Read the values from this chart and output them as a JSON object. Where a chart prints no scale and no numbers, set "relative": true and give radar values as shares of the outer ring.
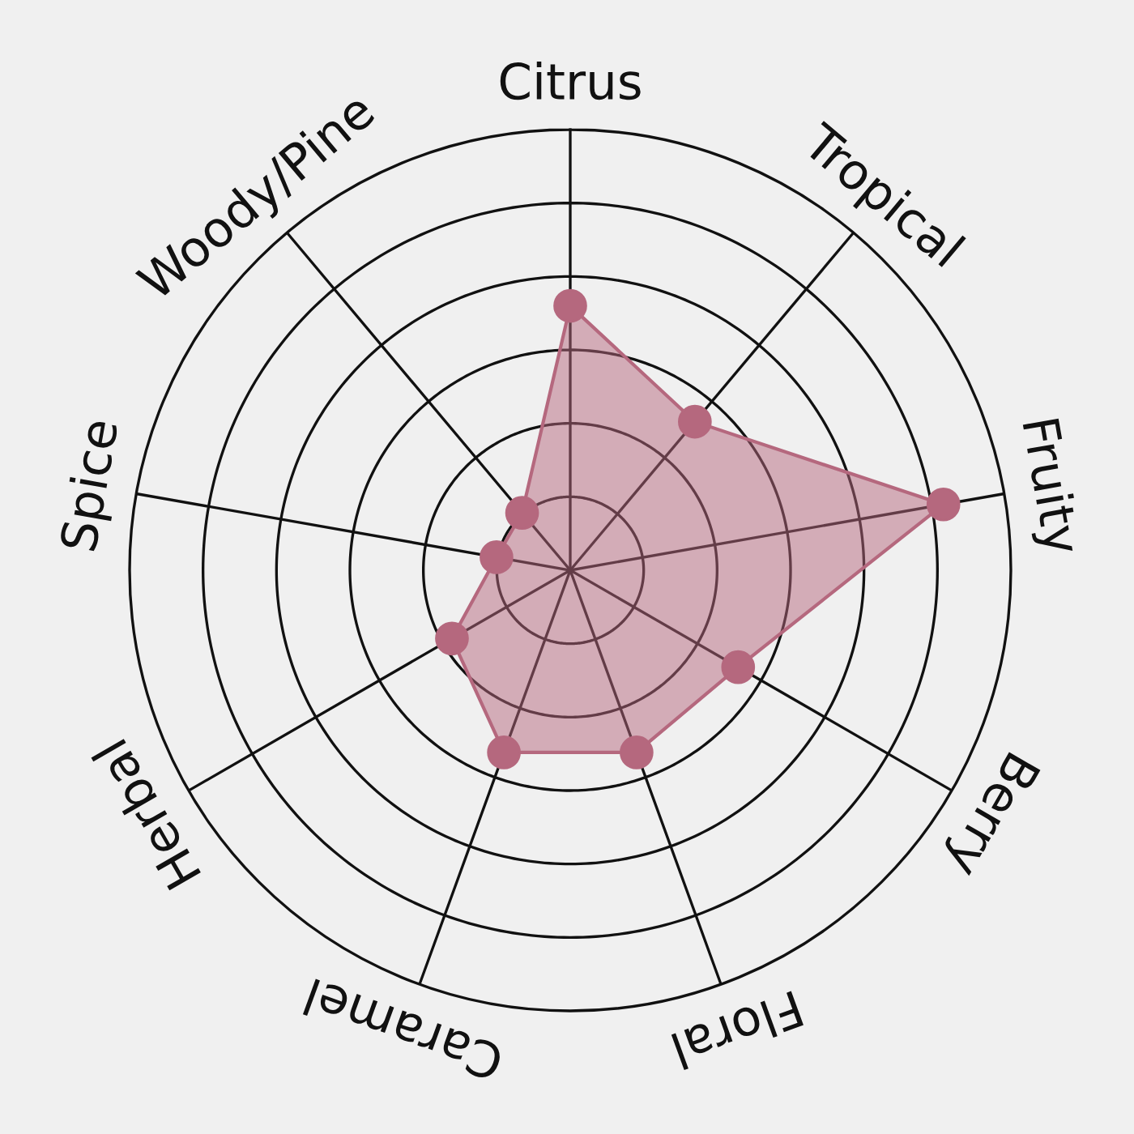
{
  "chart_data": {
    "type": "radar",
    "relative": true,
    "grid": true,
    "categories": [
      "Citrus",
      "Tropical",
      "Fruity",
      "Berry",
      "Floral",
      "Caramel",
      "Herbal",
      "Spice",
      "Woody/Pine"
    ],
    "series": [
      {
        "color": "#b5687e",
        "values": [
          0.6,
          0.44,
          0.86,
          0.44,
          0.44,
          0.44,
          0.31,
          0.17,
          0.17
        ]
      }
    ],
    "marker": "circle"
  }
}
